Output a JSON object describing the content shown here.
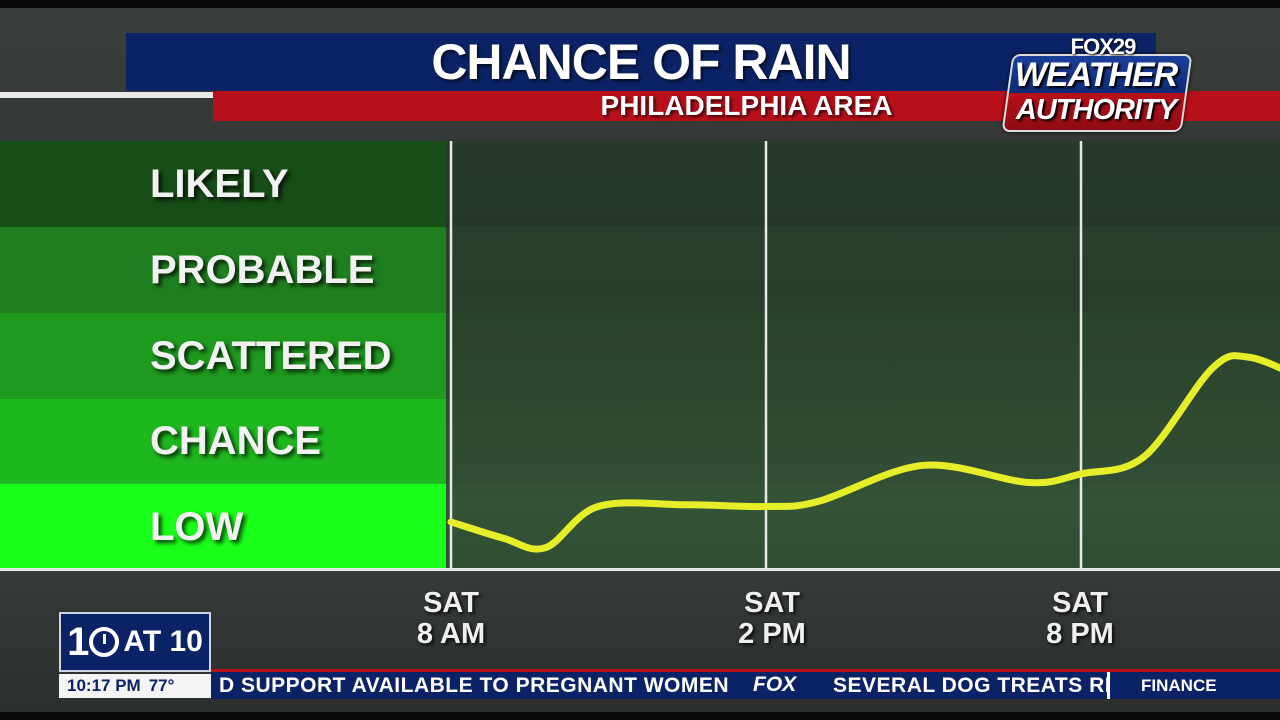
{
  "header": {
    "title": "CHANCE OF RAIN",
    "subtitle": "PHILADELPHIA AREA"
  },
  "logo": {
    "network": "FOX29",
    "line1": "WEATHER",
    "line2": "AUTHORITY"
  },
  "colors": {
    "title_bar": "#0b2366",
    "subtitle_bar": "#b8101a",
    "curve": "#e6ee2a",
    "band_likely": "#174d17",
    "band_probable": "#1f7f1f",
    "band_scattered": "#1e9a1e",
    "band_chance": "#1eb81e",
    "band_low": "#19ff19"
  },
  "chart_data": {
    "type": "line",
    "title": "CHANCE OF RAIN",
    "subtitle": "PHILADELPHIA AREA",
    "categories": [
      "LIKELY",
      "PROBABLE",
      "SCATTERED",
      "CHANCE",
      "LOW"
    ],
    "y_scale": "category levels, 0 = bottom of LOW band, 5 = top of LIKELY band",
    "ylim": [
      0,
      5
    ],
    "x_ticks": [
      {
        "day": "SAT",
        "time": "8 AM"
      },
      {
        "day": "SAT",
        "time": "2 PM"
      },
      {
        "day": "SAT",
        "time": "8 PM"
      }
    ],
    "xlim_hours_from_sat_8am": [
      0,
      16.4
    ],
    "series": [
      {
        "values": [
          {
            "x": 0,
            "y": 0.56
          },
          {
            "x": 1.0,
            "y": 0.37
          },
          {
            "x": 1.8,
            "y": 0.26
          },
          {
            "x": 2.8,
            "y": 0.74
          },
          {
            "x": 4.5,
            "y": 0.76
          },
          {
            "x": 6.0,
            "y": 0.74
          },
          {
            "x": 7.0,
            "y": 0.8
          },
          {
            "x": 9.0,
            "y": 1.22
          },
          {
            "x": 11.0,
            "y": 1.02
          },
          {
            "x": 12.0,
            "y": 1.12
          },
          {
            "x": 13.2,
            "y": 1.32
          },
          {
            "x": 14.5,
            "y": 2.35
          },
          {
            "x": 15.2,
            "y": 2.48
          },
          {
            "x": 16.2,
            "y": 2.24
          }
        ]
      }
    ],
    "grid": true
  },
  "bug": {
    "ten": "10",
    "at": "AT 10",
    "time": "10:17 PM",
    "temp": "77°"
  },
  "ticker": {
    "item1": "D SUPPORT AVAILABLE TO PREGNANT WOMEN",
    "brand": "FOX",
    "item2": "SEVERAL DOG TREATS RI",
    "section": "FINANCE"
  }
}
